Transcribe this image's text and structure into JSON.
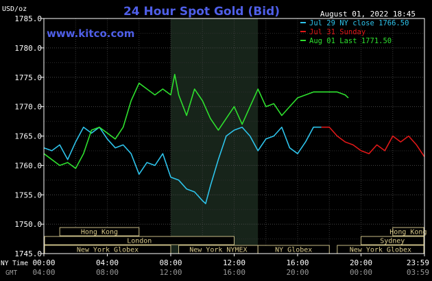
{
  "chart_data": {
    "type": "line",
    "title": "24 Hour Spot Gold (Bid)",
    "date_label": "August 01, 2022 18:45",
    "watermark": "www.kitco.com",
    "y_unit": "USD/oz",
    "ylim": [
      1745,
      1785
    ],
    "y_ticks": [
      "1785.0",
      "1780.0",
      "1775.0",
      "1770.0",
      "1765.0",
      "1760.0",
      "1755.0",
      "1750.0",
      "1745.0"
    ],
    "x_label_ny": "NY Time",
    "x_label_gmt": "GMT",
    "x_ticks_ny": [
      "00:00",
      "04:00",
      "08:00",
      "12:00",
      "16:00",
      "20:00",
      "23:59"
    ],
    "x_ticks_gmt": [
      "04:00",
      "08:00",
      "12:00",
      "16:00",
      "20:00",
      "00:00",
      "03:59"
    ],
    "legend": [
      {
        "label": "Jul 29 NY close 1766.50",
        "color": "#2ec4ec"
      },
      {
        "label": "Jul 31 Sunday",
        "color": "#e01818"
      },
      {
        "label": "Aug 01 Last 1771.50",
        "color": "#2ee02e"
      }
    ],
    "sessions": [
      {
        "label": "Hong Kong",
        "row": 0,
        "start": 1.0,
        "end": 6.0
      },
      {
        "label": "Hong Kong",
        "row": 0,
        "start": 22.0,
        "end": 25.0
      },
      {
        "label": "London",
        "row": 1,
        "start": 0.0,
        "end": 12.0
      },
      {
        "label": "Sydney",
        "row": 1,
        "start": 20.0,
        "end": 25.0
      },
      {
        "label": "New York Globex",
        "row": 2,
        "start": 0.0,
        "end": 8.0
      },
      {
        "label": "New York NYMEX",
        "row": 2,
        "start": 8.5,
        "end": 13.5
      },
      {
        "label": "NY Globex",
        "row": 2,
        "start": 13.5,
        "end": 18.0
      },
      {
        "label": "New York Globex",
        "row": 2,
        "start": 18.5,
        "end": 25.0
      }
    ],
    "highlight_hours": [
      8.0,
      13.5
    ],
    "series": [
      {
        "name": "Jul 29 NY close 1766.50",
        "color": "#2ec4ec",
        "x": [
          0,
          0.5,
          1.0,
          1.5,
          2.0,
          2.5,
          3.0,
          3.5,
          4.0,
          4.5,
          5.0,
          5.5,
          6.0,
          6.5,
          7.0,
          7.5,
          8.0,
          8.5,
          9.0,
          9.5,
          10.0,
          10.2,
          10.5,
          11.0,
          11.5,
          12.0,
          12.5,
          13.0,
          13.5,
          14.0,
          14.5,
          15.0,
          15.5,
          16.0,
          16.5,
          17.0,
          17.5
        ],
        "y": [
          1763.0,
          1762.5,
          1763.5,
          1761.0,
          1764.0,
          1766.5,
          1765.5,
          1766.5,
          1764.5,
          1763.0,
          1763.5,
          1762.0,
          1758.5,
          1760.5,
          1760.0,
          1762.0,
          1758.0,
          1757.5,
          1756.0,
          1755.5,
          1754.0,
          1753.5,
          1756.5,
          1761.0,
          1765.0,
          1766.0,
          1766.5,
          1765.0,
          1762.5,
          1764.5,
          1765.0,
          1766.5,
          1763.0,
          1762.0,
          1764.0,
          1766.5,
          1766.5
        ]
      },
      {
        "name": "Jul 31 Sunday",
        "color": "#e01818",
        "x": [
          17.5,
          18.0,
          18.5,
          19.0,
          19.5,
          20.0,
          20.5,
          21.0,
          21.5,
          22.0,
          22.5,
          23.0,
          23.5,
          23.99
        ],
        "y": [
          1766.5,
          1766.5,
          1765.0,
          1764.0,
          1763.5,
          1762.5,
          1762.0,
          1763.5,
          1762.5,
          1765.0,
          1764.0,
          1765.0,
          1763.5,
          1761.5
        ]
      },
      {
        "name": "Aug 01 Last 1771.50",
        "color": "#2ee02e",
        "x": [
          0,
          0.5,
          1.0,
          1.5,
          2.0,
          2.5,
          3.0,
          3.5,
          4.0,
          4.5,
          5.0,
          5.5,
          6.0,
          6.5,
          7.0,
          7.5,
          8.0,
          8.25,
          8.5,
          9.0,
          9.5,
          10.0,
          10.5,
          11.0,
          11.5,
          12.0,
          12.5,
          13.0,
          13.5,
          14.0,
          14.5,
          15.0,
          15.5,
          16.0,
          16.5,
          17.0,
          17.5,
          18.0,
          18.5,
          19.0,
          19.2
        ],
        "y": [
          1762.0,
          1761.0,
          1760.0,
          1760.5,
          1759.5,
          1762.0,
          1766.0,
          1766.5,
          1765.5,
          1764.5,
          1766.5,
          1771.0,
          1774.0,
          1773.0,
          1772.0,
          1773.0,
          1772.0,
          1775.5,
          1772.0,
          1768.5,
          1773.0,
          1771.0,
          1768.0,
          1766.0,
          1768.0,
          1770.0,
          1767.0,
          1770.0,
          1773.0,
          1770.0,
          1770.5,
          1768.5,
          1770.0,
          1771.5,
          1772.0,
          1772.5,
          1772.5,
          1772.5,
          1772.5,
          1772.0,
          1771.5
        ]
      }
    ]
  }
}
